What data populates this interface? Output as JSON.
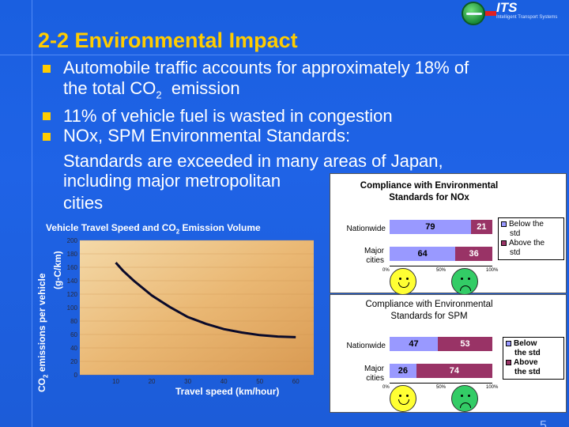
{
  "header": {
    "title": "2-2 Environmental Impact",
    "logo_text": "ITS",
    "logo_subtext": "Intelligent Transport Systems"
  },
  "bullets": {
    "b1_line1": "Automobile traffic accounts for approximately 18% of",
    "b1_line2_pre": "the total CO",
    "b1_line2_sub": "2",
    "b1_line2_post": "  emission",
    "b2": "11% of vehicle fuel is wasted in congestion",
    "b3": "NOx, SPM Environmental Standards:",
    "b3_cont1": "Standards are exceeded in many areas of Japan,",
    "b3_cont2": "including major metropolitan",
    "b3_cont3": "cities"
  },
  "emission_chart": {
    "caption_pre": "Vehicle Travel Speed and CO",
    "caption_sub": "2",
    "caption_post": " Emission Volume",
    "ylabel_pre": "CO",
    "ylabel_sub": "2",
    "ylabel_post": " emissions per vehicle",
    "ylabel_unit": "(g-C/km)",
    "xlabel": "Travel speed (km/hour)"
  },
  "chart_data": [
    {
      "type": "line",
      "title": "Vehicle Travel Speed and CO2 Emission Volume",
      "xlabel": "Travel speed (km/hour)",
      "ylabel": "CO2 emissions per vehicle (g-C/km)",
      "xlim": [
        0,
        65
      ],
      "ylim": [
        0,
        200
      ],
      "x_ticks": [
        "10",
        "20",
        "30",
        "40",
        "50",
        "60"
      ],
      "y_ticks": [
        "0",
        "20",
        "40",
        "60",
        "80",
        "100",
        "120",
        "140",
        "160",
        "180",
        "200"
      ],
      "series": [
        {
          "x": [
            10,
            12,
            15,
            20,
            25,
            30,
            35,
            40,
            45,
            50,
            55,
            60
          ],
          "y": [
            167,
            155,
            140,
            118,
            101,
            86,
            76,
            68,
            63,
            59,
            57,
            56
          ]
        }
      ]
    },
    {
      "type": "bar",
      "title": "Compliance with Environmental Standards for NOx",
      "categories": [
        "Nationwide",
        "Major cities"
      ],
      "series": [
        {
          "name": "Below the std",
          "values": [
            79,
            64
          ]
        },
        {
          "name": "Above the std",
          "values": [
            21,
            36
          ]
        }
      ],
      "x_ticks": [
        "0%",
        "50%",
        "100%"
      ]
    },
    {
      "type": "bar",
      "title": "Compliance with Environmental Standards for SPM",
      "categories": [
        "Nationwide",
        "Major cities"
      ],
      "series": [
        {
          "name": "Below the std",
          "values": [
            47,
            26
          ]
        },
        {
          "name": "Above the std",
          "values": [
            53,
            74
          ]
        }
      ],
      "x_ticks": [
        "0%",
        "50%",
        "100%"
      ]
    }
  ],
  "nox_panel": {
    "title_line1": "Compliance with Environmental",
    "title_line2": "Standards for NOx",
    "row1": "Nationwide",
    "row2_line1": "Major",
    "row2_line2": "cities",
    "legend_below_1": "Below the",
    "legend_below_2": "std",
    "legend_above_1": "Above the",
    "legend_above_2": "std",
    "below_color": "#9999ff",
    "above_color": "#993366"
  },
  "spm_panel": {
    "title_line1": "Compliance with Environmental",
    "title_line2": "Standards for SPM",
    "row1": "Nationwide",
    "row2_line1": "Major",
    "row2_line2": "cities",
    "legend_below_1": "Below",
    "legend_below_2": "the std",
    "legend_above_1": "Above",
    "legend_above_2": "the std"
  },
  "footer": {
    "page_number": "5"
  }
}
